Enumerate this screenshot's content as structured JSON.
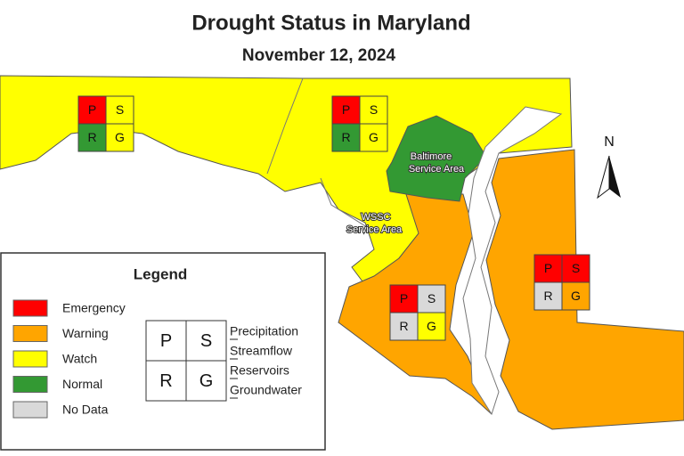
{
  "header": {
    "title": "Drought Status in Maryland",
    "date": "November 12, 2024"
  },
  "map": {
    "north": "N",
    "areas": [
      {
        "lines": [
          "Baltimore",
          "Service Area"
        ]
      },
      {
        "lines": [
          "WSSC",
          "Service Area"
        ]
      }
    ],
    "regions": [
      {
        "indicators": [
          {
            "letter": "P",
            "color": "#ff0000"
          },
          {
            "letter": "S",
            "color": "#ffff00"
          },
          {
            "letter": "R",
            "color": "#339933"
          },
          {
            "letter": "G",
            "color": "#ffff00"
          }
        ]
      },
      {
        "indicators": [
          {
            "letter": "P",
            "color": "#ff0000"
          },
          {
            "letter": "S",
            "color": "#ffff00"
          },
          {
            "letter": "R",
            "color": "#339933"
          },
          {
            "letter": "G",
            "color": "#ffff00"
          }
        ]
      },
      {
        "indicators": [
          {
            "letter": "P",
            "color": "#ff0000"
          },
          {
            "letter": "S",
            "color": "#d9d9d9"
          },
          {
            "letter": "R",
            "color": "#d9d9d9"
          },
          {
            "letter": "G",
            "color": "#ffff00"
          }
        ]
      },
      {
        "indicators": [
          {
            "letter": "P",
            "color": "#ff0000"
          },
          {
            "letter": "S",
            "color": "#ff0000"
          },
          {
            "letter": "R",
            "color": "#d9d9d9"
          },
          {
            "letter": "G",
            "color": "#ffa500"
          }
        ]
      }
    ]
  },
  "legend": {
    "title": "Legend",
    "statuses": [
      {
        "label": "Emergency",
        "color": "#ff0000"
      },
      {
        "label": "Warning",
        "color": "#ffa500"
      },
      {
        "label": "Watch",
        "color": "#ffff00"
      },
      {
        "label": "Normal",
        "color": "#339933"
      },
      {
        "label": "No Data",
        "color": "#d9d9d9"
      }
    ],
    "key": {
      "letters": [
        "P",
        "S",
        "R",
        "G"
      ],
      "words": [
        "Precipitation",
        "Streamflow",
        "Reservoirs",
        "Groundwater"
      ]
    }
  }
}
